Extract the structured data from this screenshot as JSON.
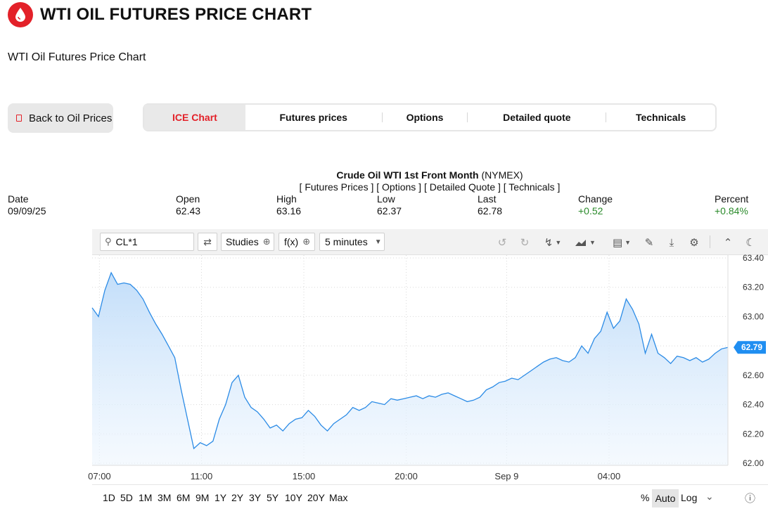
{
  "header": {
    "title": "WTI OIL FUTURES PRICE CHART",
    "subtitle": "WTI Oil Futures Price Chart"
  },
  "back_button": {
    "label": "Back to Oil Prices"
  },
  "tabs": [
    {
      "label": "ICE Chart",
      "active": true
    },
    {
      "label": "Futures prices",
      "active": false
    },
    {
      "label": "Options",
      "active": false
    },
    {
      "label": "Detailed quote",
      "active": false
    },
    {
      "label": "Technicals",
      "active": false
    }
  ],
  "quote": {
    "name": "Crude Oil WTI 1st Front Month",
    "exchange": "(NYMEX)",
    "links": "[ Futures Prices ] [ Options ] [ Detailed Quote ] [ Technicals ]",
    "columns": [
      {
        "label": "Date",
        "value": "09/09/25"
      },
      {
        "label": "Open",
        "value": "62.43"
      },
      {
        "label": "High",
        "value": "63.16"
      },
      {
        "label": "Low",
        "value": "62.37"
      },
      {
        "label": "Last",
        "value": "62.78"
      },
      {
        "label": "Change",
        "value": "+0.52"
      },
      {
        "label": "Percent",
        "value": "+0.84%"
      }
    ],
    "positive_color": "#2a8a2a"
  },
  "toolbar": {
    "symbol_value": "CL*1",
    "studies_label": "Studies",
    "fx_label": "f(x)",
    "interval_label": "5 minutes",
    "icons": [
      "search-icon",
      "compare-icon",
      "plus-circle-icon",
      "undo-icon",
      "redo-icon",
      "draw-tools-icon",
      "chart-type-icon",
      "layout-icon",
      "pencil-icon",
      "download-icon",
      "gear-icon",
      "collapse-icon",
      "moon-icon"
    ]
  },
  "timeframes": [
    "1D",
    "5D",
    "1M",
    "3M",
    "6M",
    "9M",
    "1Y",
    "2Y",
    "3Y",
    "5Y",
    "10Y",
    "20Y",
    "Max"
  ],
  "scale_options": {
    "percent": "%",
    "auto": "Auto",
    "log": "Log"
  },
  "colors": {
    "brand": "#e32129",
    "line": "#2b8be6",
    "fill": "#cfe5fb",
    "last_badge": "#1f8ef1"
  },
  "chart_data": {
    "type": "area",
    "x_tick_labels": [
      "07:00",
      "11:00",
      "15:00",
      "20:00",
      "Sep 9",
      "04:00"
    ],
    "y_tick_labels": [
      "63.40",
      "63.20",
      "63.00",
      "62.80",
      "62.60",
      "62.40",
      "62.20",
      "62.00"
    ],
    "ylim": [
      62.0,
      63.4
    ],
    "last_value_label": "62.79",
    "grid": true,
    "x_index": "sample index (5-minute bars), ticks at 07:00=1.15, 11:00=17.2, 15:00=33.3, 20:00=49.4, Sep 9=65.2, 04:00=81.3",
    "values": [
      63.06,
      63.0,
      63.18,
      63.3,
      63.22,
      63.23,
      63.22,
      63.18,
      63.12,
      63.03,
      62.95,
      62.88,
      62.8,
      62.72,
      62.5,
      62.3,
      62.1,
      62.14,
      62.12,
      62.15,
      62.3,
      62.4,
      62.55,
      62.6,
      62.45,
      62.38,
      62.35,
      62.3,
      62.24,
      62.26,
      62.22,
      62.27,
      62.3,
      62.31,
      62.36,
      62.32,
      62.26,
      62.22,
      62.27,
      62.3,
      62.33,
      62.38,
      62.36,
      62.38,
      62.42,
      62.41,
      62.4,
      62.44,
      62.43,
      62.44,
      62.45,
      62.46,
      62.44,
      62.46,
      62.45,
      62.47,
      62.48,
      62.46,
      62.44,
      62.42,
      62.43,
      62.45,
      62.5,
      62.52,
      62.55,
      62.56,
      62.58,
      62.57,
      62.6,
      62.63,
      62.66,
      62.69,
      62.71,
      62.72,
      62.7,
      62.69,
      62.72,
      62.8,
      62.75,
      62.85,
      62.9,
      63.03,
      62.92,
      62.97,
      63.12,
      63.05,
      62.95,
      62.75,
      62.88,
      62.75,
      62.72,
      62.68,
      62.73,
      62.72,
      62.7,
      62.72,
      62.69,
      62.71,
      62.75,
      62.78,
      62.79
    ]
  }
}
